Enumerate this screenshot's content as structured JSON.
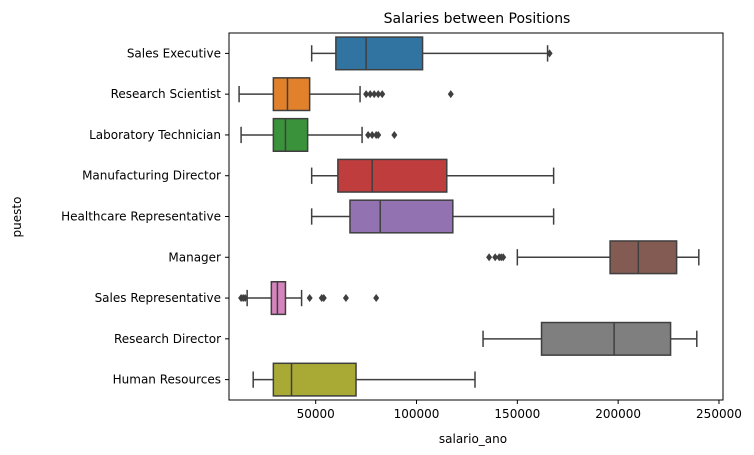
{
  "chart_data": {
    "type": "boxplot",
    "orientation": "horizontal",
    "title": "Salaries between Positions",
    "xlabel": "salario_ano",
    "ylabel": "puesto",
    "xlim": [
      7000,
      252000
    ],
    "xticks": [
      50000,
      100000,
      150000,
      200000,
      250000
    ],
    "grid": false,
    "categories": [
      "Sales Executive",
      "Research Scientist",
      "Laboratory Technician",
      "Manufacturing Director",
      "Healthcare Representative",
      "Manager",
      "Sales Representative",
      "Research Director",
      "Human Resources"
    ],
    "boxes": [
      {
        "category": "Sales Executive",
        "whisker_low": 48000,
        "q1": 60000,
        "median": 75000,
        "q3": 103000,
        "whisker_high": 165000,
        "outliers": [
          166000
        ],
        "color": "#3274a1"
      },
      {
        "category": "Research Scientist",
        "whisker_low": 12000,
        "q1": 29000,
        "median": 36000,
        "q3": 47000,
        "whisker_high": 72000,
        "outliers": [
          75000,
          77000,
          79000,
          81000,
          83000,
          117000
        ],
        "color": "#e1812c"
      },
      {
        "category": "Laboratory Technician",
        "whisker_low": 13000,
        "q1": 29000,
        "median": 35000,
        "q3": 46000,
        "whisker_high": 73000,
        "outliers": [
          76000,
          78000,
          80000,
          81000,
          89000
        ],
        "color": "#3a923a"
      },
      {
        "category": "Manufacturing Director",
        "whisker_low": 48000,
        "q1": 61000,
        "median": 78000,
        "q3": 115000,
        "whisker_high": 168000,
        "outliers": [],
        "color": "#c03d3e"
      },
      {
        "category": "Healthcare Representative",
        "whisker_low": 48000,
        "q1": 67000,
        "median": 82000,
        "q3": 118000,
        "whisker_high": 168000,
        "outliers": [],
        "color": "#9372b2"
      },
      {
        "category": "Manager",
        "whisker_low": 150000,
        "q1": 196000,
        "median": 210000,
        "q3": 229000,
        "whisker_high": 240000,
        "outliers": [
          136000,
          139000,
          141000,
          142000,
          143000
        ],
        "color": "#845b53"
      },
      {
        "category": "Sales Representative",
        "whisker_low": 16000,
        "q1": 28000,
        "median": 31000,
        "q3": 35000,
        "whisker_high": 43000,
        "outliers": [
          13000,
          14000,
          15000,
          47000,
          53000,
          54000,
          65000,
          80000
        ],
        "color": "#d684bd"
      },
      {
        "category": "Research Director",
        "whisker_low": 133000,
        "q1": 162000,
        "median": 198000,
        "q3": 226000,
        "whisker_high": 239000,
        "outliers": [],
        "color": "#7f7f7f"
      },
      {
        "category": "Human Resources",
        "whisker_low": 19000,
        "q1": 29000,
        "median": 38000,
        "q3": 70000,
        "whisker_high": 129000,
        "outliers": [],
        "color": "#a9aa35"
      }
    ]
  }
}
